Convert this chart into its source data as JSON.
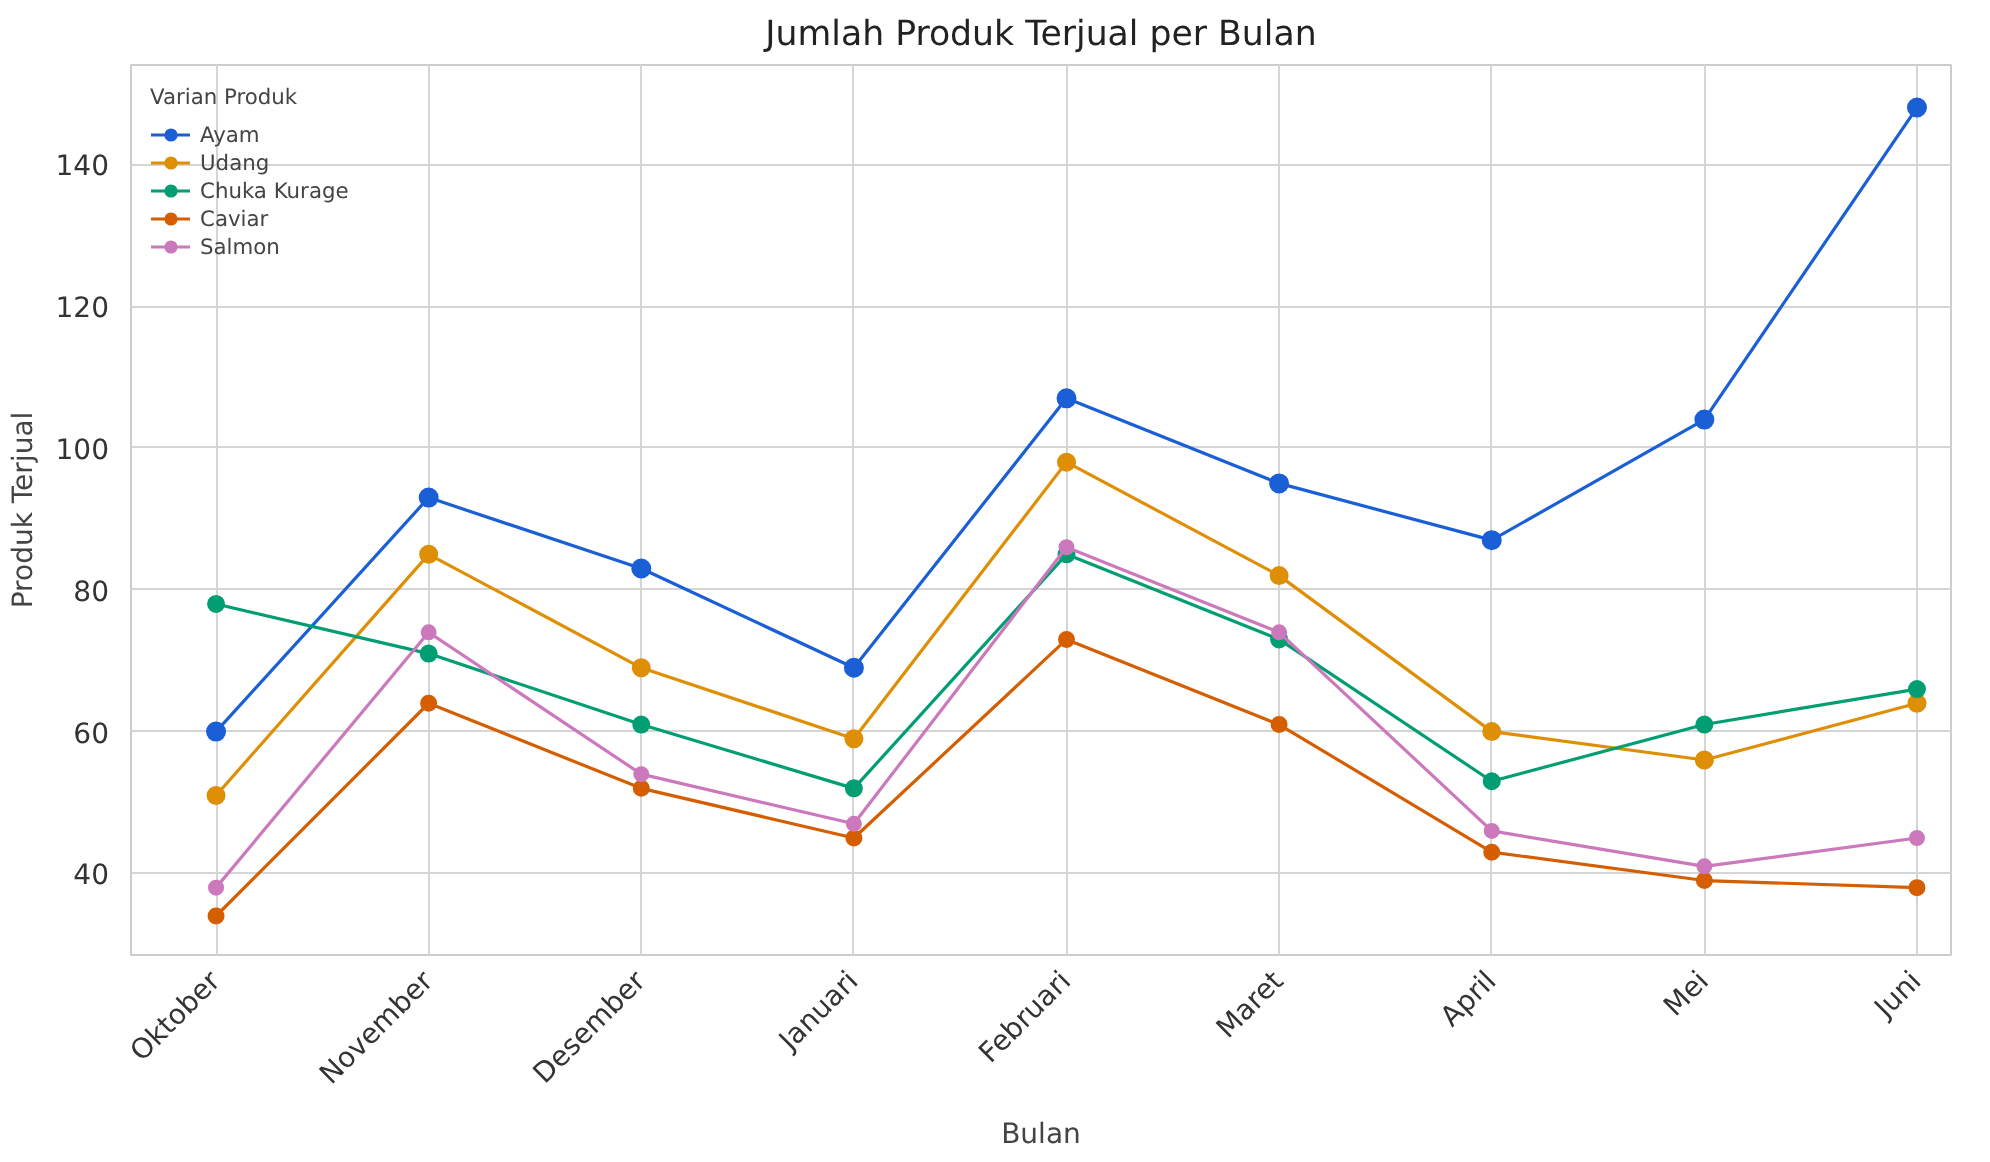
{
  "chart_data": {
    "type": "line",
    "title": "Jumlah Produk Terjual per Bulan",
    "xlabel": "Bulan",
    "ylabel": "Produk Terjual",
    "legend_title": "Varian Produk",
    "categories": [
      "Oktober",
      "November",
      "Desember",
      "Januari",
      "Februari",
      "Maret",
      "April",
      "Mei",
      "Juni"
    ],
    "series": [
      {
        "name": "Ayam",
        "color": "#1a5fd6",
        "values": [
          60,
          93,
          83,
          69,
          107,
          95,
          87,
          104,
          148
        ]
      },
      {
        "name": "Udang",
        "color": "#de8f05",
        "values": [
          51,
          85,
          69,
          59,
          98,
          82,
          60,
          56,
          64
        ]
      },
      {
        "name": "Chuka Kurage",
        "color": "#029e73",
        "values": [
          78,
          71,
          61,
          52,
          85,
          73,
          53,
          61,
          66
        ]
      },
      {
        "name": "Caviar",
        "color": "#d55e00",
        "values": [
          34,
          64,
          52,
          45,
          73,
          61,
          43,
          39,
          38
        ]
      },
      {
        "name": "Salmon",
        "color": "#cc78bc",
        "values": [
          38,
          74,
          54,
          47,
          86,
          74,
          46,
          41,
          45
        ]
      }
    ],
    "ylim": [
      28.5,
      154
    ],
    "yticks": [
      40,
      60,
      80,
      100,
      120,
      140
    ],
    "grid": true,
    "legend": "top left",
    "marker": "circle",
    "line_style": "solid"
  }
}
